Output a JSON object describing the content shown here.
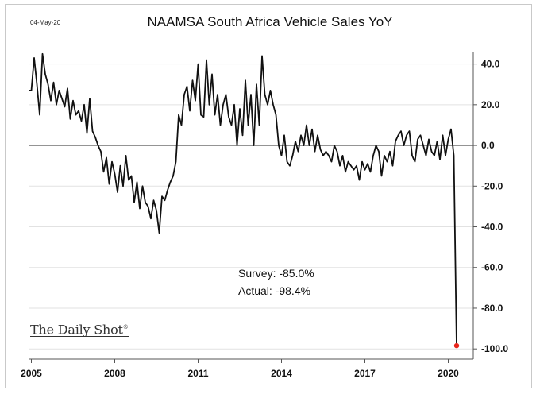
{
  "header": {
    "date": "04-May-20"
  },
  "watermark": "The Daily Shot®",
  "chart_data": {
    "type": "line",
    "title": "NAAMSA South Africa Vehicle Sales YoY",
    "xlabel": "",
    "ylabel": "",
    "x_ticks": [
      "2005",
      "2008",
      "2011",
      "2014",
      "2017",
      "2020"
    ],
    "y_ticks": [
      "40.0",
      "20.0",
      "0.0",
      "-20.0",
      "-40.0",
      "-60.0",
      "-80.0",
      "-100.0"
    ],
    "ylim": [
      -100,
      45
    ],
    "xlim": [
      2005.0,
      2020.9
    ],
    "grid": "horizontal",
    "y_axis_side": "right",
    "line_color": "#111111",
    "marker_color": "#e8251c",
    "series": [
      {
        "x": [
          2004.9,
          2005.0,
          2005.1,
          2005.2,
          2005.3,
          2005.4,
          2005.5,
          2005.6,
          2005.7,
          2005.8,
          2005.9,
          2006.0,
          2006.1,
          2006.2,
          2006.3,
          2006.4,
          2006.5,
          2006.6,
          2006.7,
          2006.8,
          2006.9,
          2007.0,
          2007.1,
          2007.2,
          2007.3,
          2007.4,
          2007.5,
          2007.6,
          2007.7,
          2007.8,
          2007.9,
          2008.0,
          2008.1,
          2008.2,
          2008.3,
          2008.4,
          2008.5,
          2008.6,
          2008.7,
          2008.8,
          2008.9,
          2009.0,
          2009.1,
          2009.2,
          2009.3,
          2009.4,
          2009.5,
          2009.6,
          2009.7,
          2009.8,
          2009.9,
          2010.0,
          2010.1,
          2010.2,
          2010.3,
          2010.4,
          2010.5,
          2010.6,
          2010.7,
          2010.8,
          2010.9,
          2011.0,
          2011.1,
          2011.2,
          2011.3,
          2011.4,
          2011.5,
          2011.6,
          2011.7,
          2011.8,
          2011.9,
          2012.0,
          2012.1,
          2012.2,
          2012.3,
          2012.4,
          2012.5,
          2012.6,
          2012.7,
          2012.8,
          2012.9,
          2013.0,
          2013.1,
          2013.2,
          2013.3,
          2013.4,
          2013.5,
          2013.6,
          2013.7,
          2013.8,
          2013.9,
          2014.0,
          2014.1,
          2014.2,
          2014.3,
          2014.4,
          2014.5,
          2014.6,
          2014.7,
          2014.8,
          2014.9,
          2015.0,
          2015.1,
          2015.2,
          2015.3,
          2015.4,
          2015.5,
          2015.6,
          2015.7,
          2015.8,
          2015.9,
          2016.0,
          2016.1,
          2016.2,
          2016.3,
          2016.4,
          2016.5,
          2016.6,
          2016.7,
          2016.8,
          2016.9,
          2017.0,
          2017.1,
          2017.2,
          2017.3,
          2017.4,
          2017.5,
          2017.6,
          2017.7,
          2017.8,
          2017.9,
          2018.0,
          2018.1,
          2018.2,
          2018.3,
          2018.4,
          2018.5,
          2018.6,
          2018.7,
          2018.8,
          2018.9,
          2019.0,
          2019.1,
          2019.2,
          2019.3,
          2019.4,
          2019.5,
          2019.6,
          2019.7,
          2019.8,
          2019.9,
          2020.0,
          2020.1,
          2020.2,
          2020.3
        ],
        "values": [
          27,
          27,
          43,
          30,
          15,
          45,
          35,
          30,
          22,
          31,
          20,
          27,
          23,
          19,
          28,
          13,
          22,
          15,
          17,
          12,
          20,
          6,
          23,
          7,
          4,
          0,
          -3,
          -13,
          -6,
          -19,
          -8,
          -14,
          -23,
          -10,
          -20,
          -5,
          -17,
          -15,
          -28,
          -18,
          -31,
          -20,
          -28,
          -30,
          -36,
          -27,
          -32,
          -43,
          -25,
          -27,
          -22,
          -18,
          -15,
          -8,
          15,
          10,
          25,
          29,
          17,
          32,
          22,
          40,
          15,
          14,
          42,
          20,
          35,
          15,
          25,
          10,
          20,
          25,
          14,
          10,
          20,
          0,
          18,
          5,
          32,
          10,
          25,
          0,
          30,
          10,
          44,
          25,
          20,
          27,
          20,
          15,
          0,
          -5,
          5,
          -8,
          -10,
          -5,
          2,
          -3,
          5,
          0,
          10,
          0,
          8,
          -3,
          5,
          -2,
          -5,
          -3,
          -5,
          -8,
          0,
          -3,
          -10,
          -5,
          -13,
          -8,
          -10,
          -12,
          -10,
          -17,
          -8,
          -12,
          -9,
          -13,
          -5,
          0,
          -3,
          -15,
          -5,
          -8,
          -3,
          -10,
          2,
          5,
          7,
          0,
          5,
          7,
          -5,
          -8,
          3,
          5,
          0,
          -5,
          3,
          -3,
          -5,
          2,
          -7,
          5,
          -5,
          3,
          8,
          -5,
          -98.4
        ],
        "name": ""
      }
    ],
    "annotations": [
      "Survey: -85.0%",
      "Actual:  -98.4%"
    ],
    "highlight_point": {
      "x": 2020.3,
      "y": -98.4
    }
  }
}
